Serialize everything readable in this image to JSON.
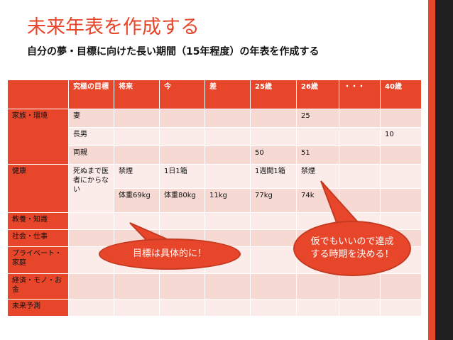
{
  "slide": {
    "title": "未来年表を作成する",
    "subtitle": "自分の夢・目標に向けた長い期間（15年程度）の年表を作成する"
  },
  "table": {
    "headers": [
      "",
      "究極の目標",
      "将来",
      "今",
      "差",
      "25歳",
      "26歳",
      "・・・",
      "40歳"
    ],
    "categories": {
      "family": "家族・環境",
      "health": "健康",
      "education": "教養・知識",
      "work": "社会・仕事",
      "private": "プライベート・家庭",
      "finance": "経済・モノ・お金",
      "future": "未来予測"
    },
    "rows": {
      "wife": [
        "妻",
        "25"
      ],
      "son": [
        "長男",
        "10"
      ],
      "parents": [
        "両親",
        "50",
        "51"
      ],
      "health_goal": "死ぬまで医者にからない",
      "smoke": [
        "禁煙",
        "1日1箱",
        "1週間1箱",
        "禁煙"
      ],
      "weight": [
        "体重69kg",
        "体重80kg",
        "11kg",
        "77kg",
        "74k"
      ]
    }
  },
  "callouts": {
    "left": "目標は具体的に！",
    "right": "仮でもいいので達成する時期を決める！"
  },
  "colors": {
    "accent": "#e8462a",
    "row_dark": "#f7d9d3",
    "row_light": "#fbecea",
    "bar_dark": "#1f1f1f"
  }
}
